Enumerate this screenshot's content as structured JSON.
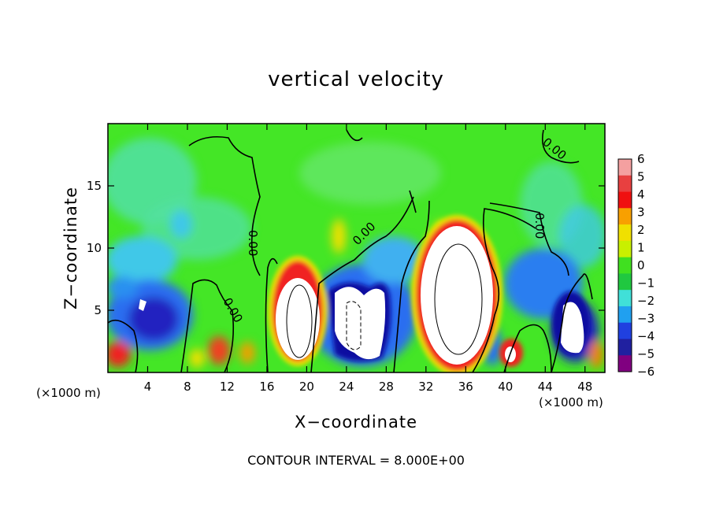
{
  "chart_data": {
    "type": "heatmap",
    "title": "vertical velocity",
    "xlabel": "X−coordinate",
    "ylabel": "Z−coordinate",
    "x_unit": "(×1000 m)",
    "contour_note": "CONTOUR INTERVAL = 8.000E+00",
    "xlim": [
      0,
      50
    ],
    "ylim": [
      0,
      20
    ],
    "x_ticks": [
      4,
      8,
      12,
      16,
      20,
      24,
      28,
      32,
      36,
      40,
      44,
      48
    ],
    "y_ticks": [
      5,
      10,
      15
    ],
    "colorbar": {
      "ticks": [
        "6",
        "5",
        "4",
        "3",
        "2",
        "1",
        "0",
        "−1",
        "−2",
        "−3",
        "−4",
        "−5",
        "−6"
      ],
      "colors": [
        "#f4a0a0",
        "#e84040",
        "#f01010",
        "#f8a000",
        "#f0e000",
        "#c8f000",
        "#40e020",
        "#20c840",
        "#40e0d8",
        "#20a0f0",
        "#2040e0",
        "#2020a0",
        "#800080"
      ]
    },
    "contour_labels": [
      "0.00",
      "0.00",
      "0.00",
      "0.00",
      "0.00"
    ]
  }
}
